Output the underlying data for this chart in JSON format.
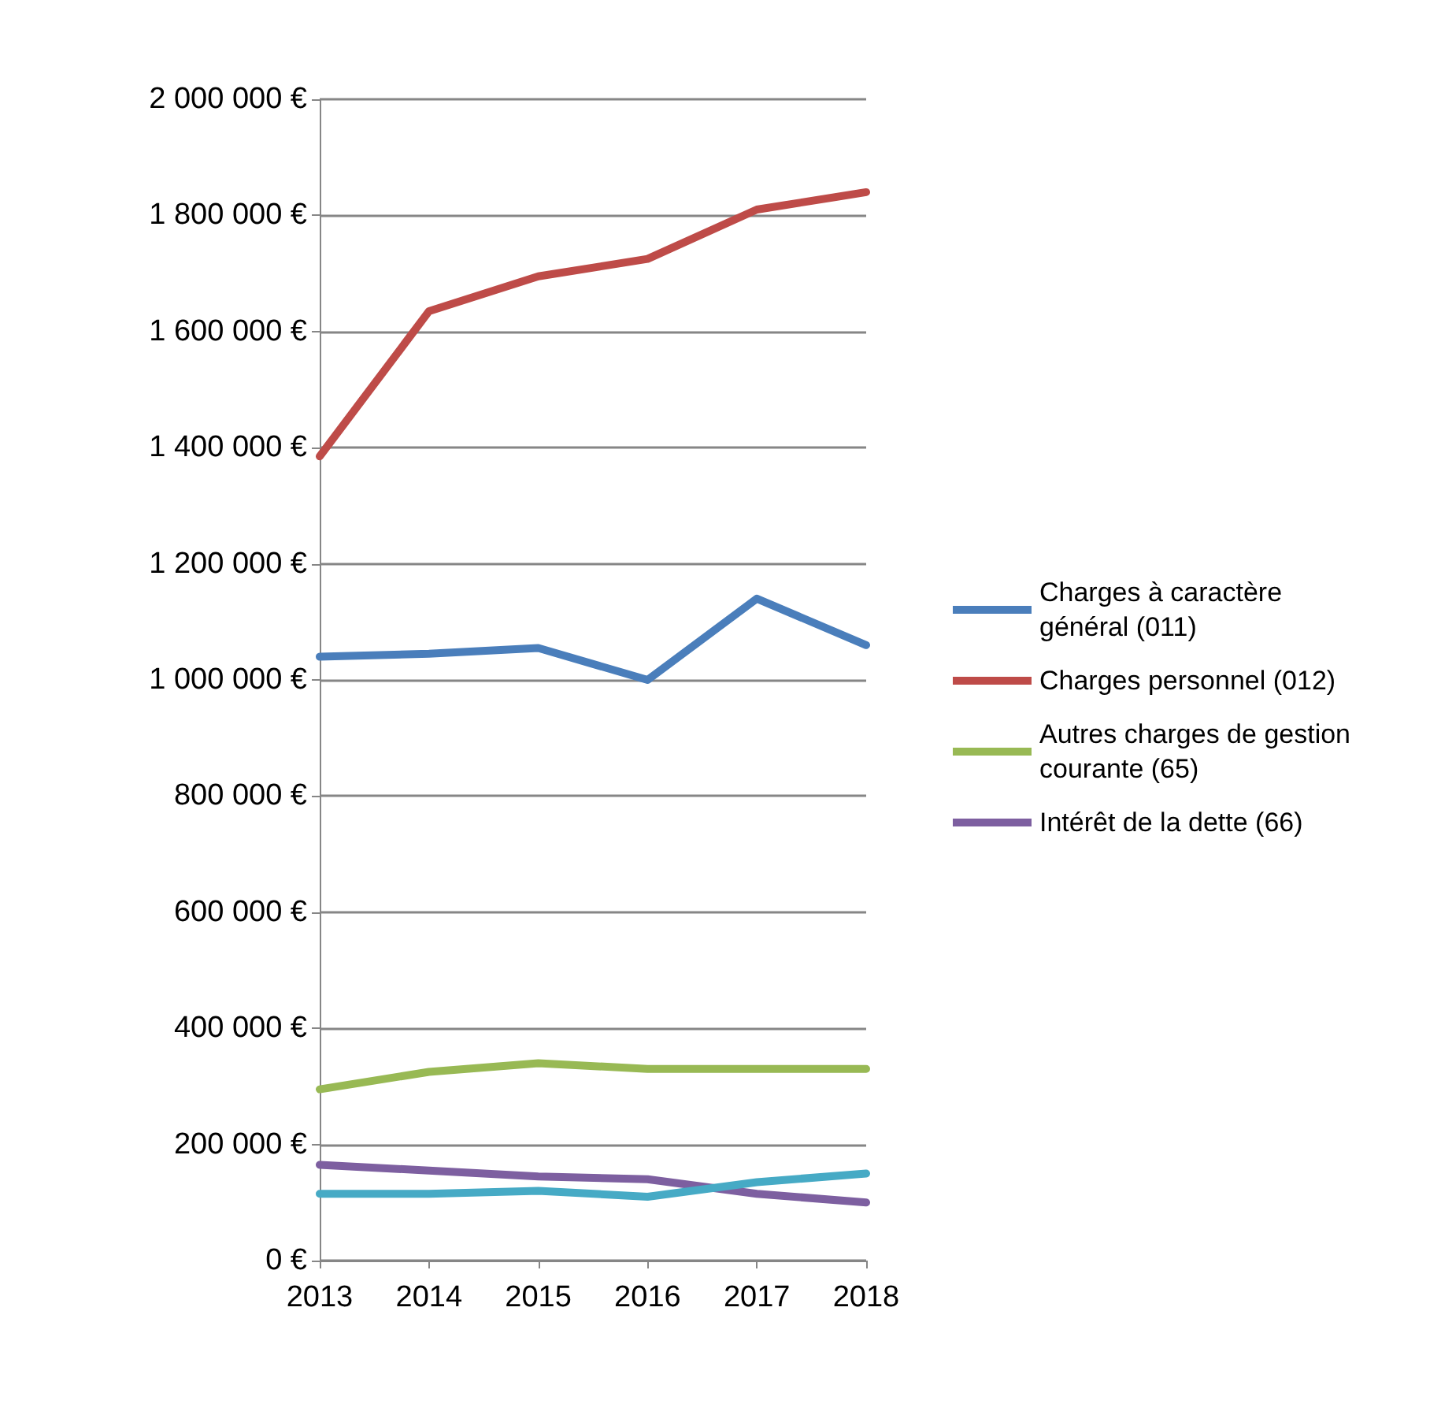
{
  "chart_data": {
    "type": "line",
    "categories": [
      "2013",
      "2014",
      "2015",
      "2016",
      "2017",
      "2018"
    ],
    "series": [
      {
        "name": "Charges à caractère général (011)",
        "color": "#4a7ebb",
        "values": [
          1040000,
          1045000,
          1055000,
          1000000,
          1140000,
          1060000
        ]
      },
      {
        "name": "Charges personnel (012)",
        "color": "#be4b48",
        "values": [
          1385000,
          1635000,
          1695000,
          1725000,
          1810000,
          1840000
        ]
      },
      {
        "name": "Autres charges de gestion courante (65)",
        "color": "#98b954",
        "values": [
          295000,
          325000,
          340000,
          330000,
          330000,
          330000
        ]
      },
      {
        "name": "Intérêt de la dette (66)",
        "color": "#7d5fa0",
        "values": [
          165000,
          155000,
          145000,
          140000,
          115000,
          100000
        ]
      },
      {
        "color": "#46aac5",
        "values": [
          115000,
          115000,
          120000,
          110000,
          135000,
          150000
        ]
      }
    ],
    "ylim": [
      0,
      2000000
    ],
    "yticks": [
      {
        "value": 0,
        "label": "0 €"
      },
      {
        "value": 200000,
        "label": "200 000 €"
      },
      {
        "value": 400000,
        "label": "400 000 €"
      },
      {
        "value": 600000,
        "label": "600 000 €"
      },
      {
        "value": 800000,
        "label": "800 000 €"
      },
      {
        "value": 1000000,
        "label": "1 000 000 €"
      },
      {
        "value": 1200000,
        "label": "1 200 000 €"
      },
      {
        "value": 1400000,
        "label": "1 400 000 €"
      },
      {
        "value": 1600000,
        "label": "1 600 000 €"
      },
      {
        "value": 1800000,
        "label": "1 800 000 €"
      },
      {
        "value": 2000000,
        "label": "2 000 000 €"
      }
    ],
    "grid": "y",
    "legend": "right",
    "marker": "none",
    "line_style": "solid"
  }
}
